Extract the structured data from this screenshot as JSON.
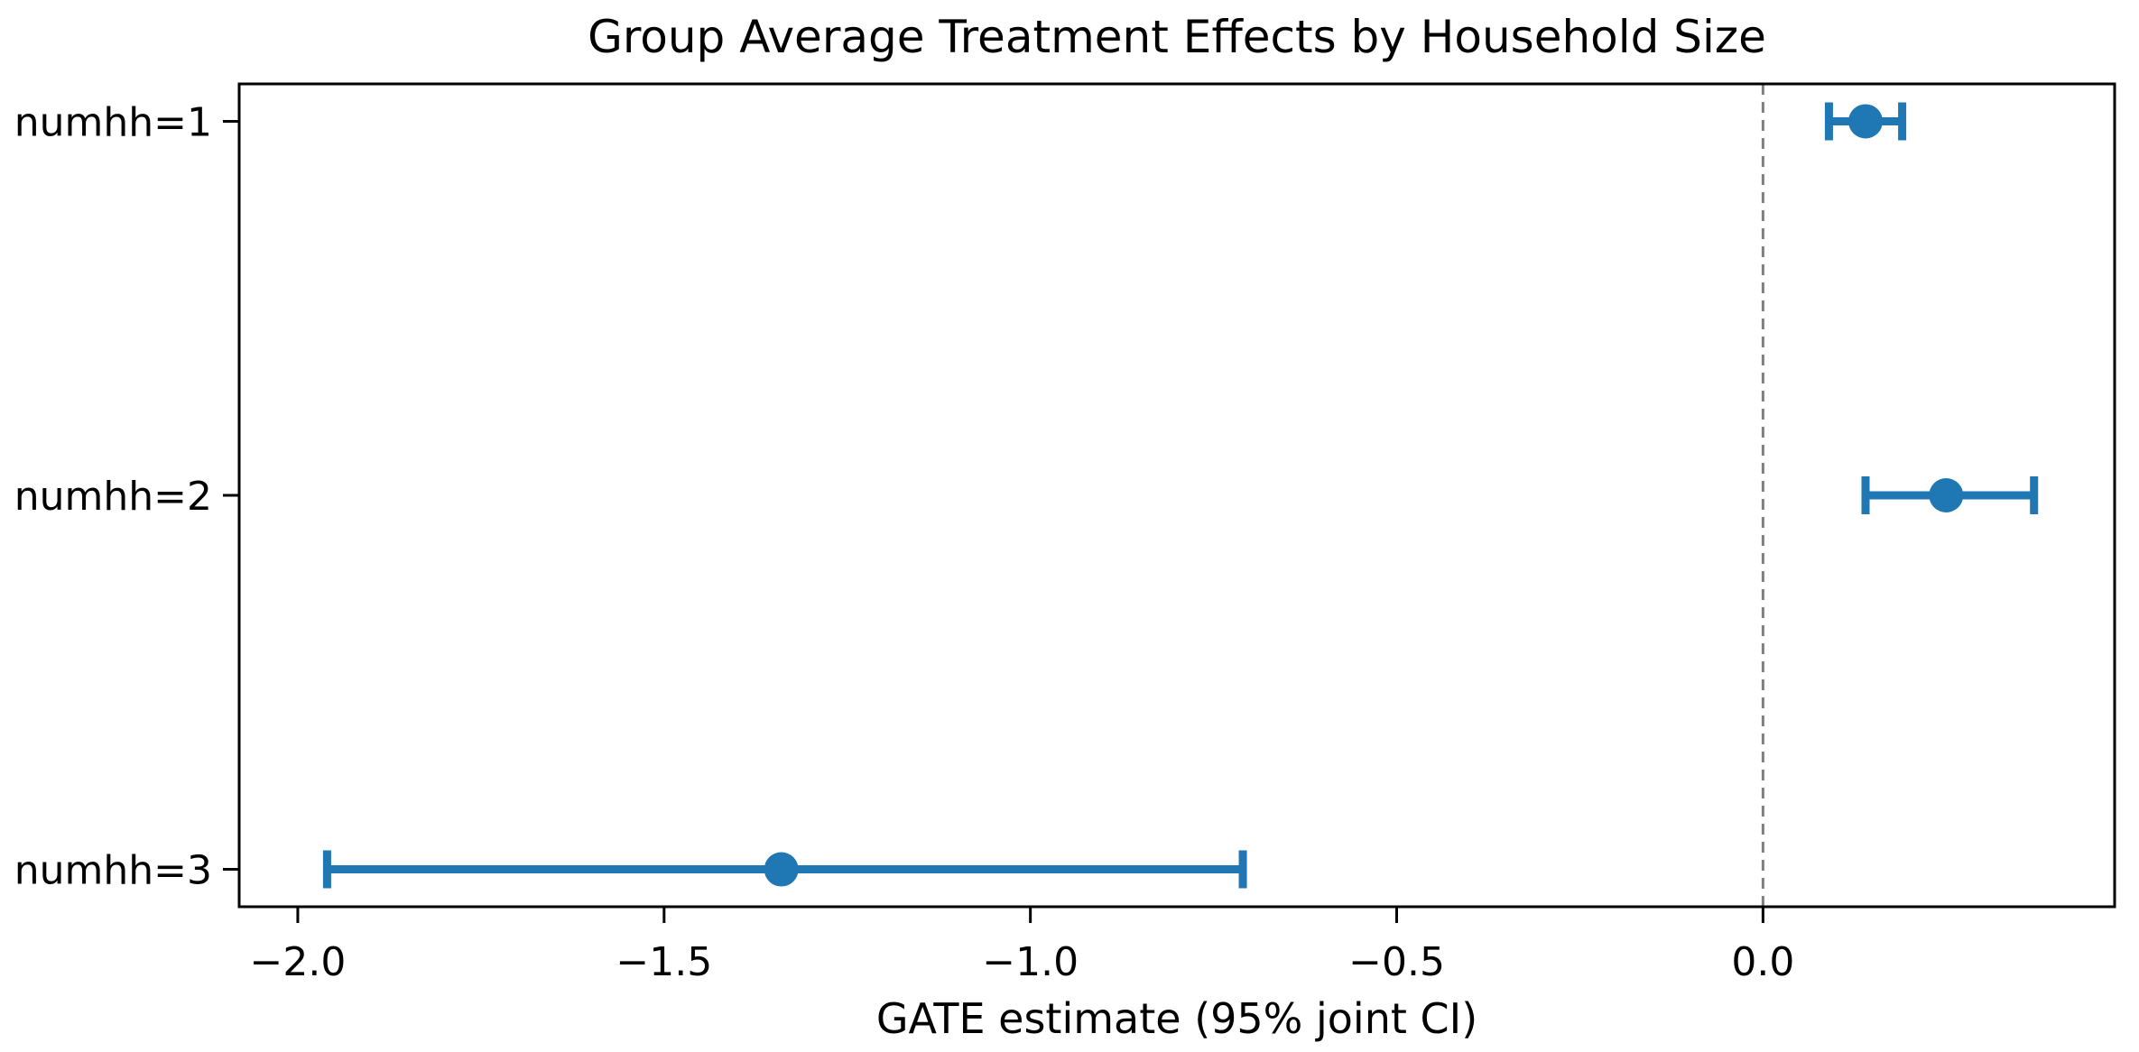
{
  "chart_data": {
    "type": "scatter",
    "subtype": "horizontal-errorbar",
    "title": "Group Average Treatment Effects by Household Size",
    "xlabel": "GATE estimate (95% joint CI)",
    "ylabel": "",
    "categories": [
      "numhh=1",
      "numhh=2",
      "numhh=3"
    ],
    "points": [
      {
        "label": "numhh=1",
        "estimate": 0.14,
        "ci_low": 0.09,
        "ci_high": 0.19
      },
      {
        "label": "numhh=2",
        "estimate": 0.25,
        "ci_low": 0.14,
        "ci_high": 0.37
      },
      {
        "label": "numhh=3",
        "estimate": -1.34,
        "ci_low": -1.96,
        "ci_high": -0.71
      }
    ],
    "x_ticks": [
      -2.0,
      -1.5,
      -1.0,
      -0.5,
      0.0
    ],
    "x_tick_labels": [
      "−2.0",
      "−1.5",
      "−1.0",
      "−0.5",
      "0.0"
    ],
    "xlim": [
      -2.08,
      0.48
    ],
    "reference_line_x": 0.0,
    "grid": false,
    "legend": null,
    "colors": {
      "marker": "#1f77b4",
      "errorbar": "#1f77b4",
      "reference_line": "#7f7f7f",
      "axis": "#000000",
      "text": "#000000",
      "background": "#ffffff"
    }
  }
}
